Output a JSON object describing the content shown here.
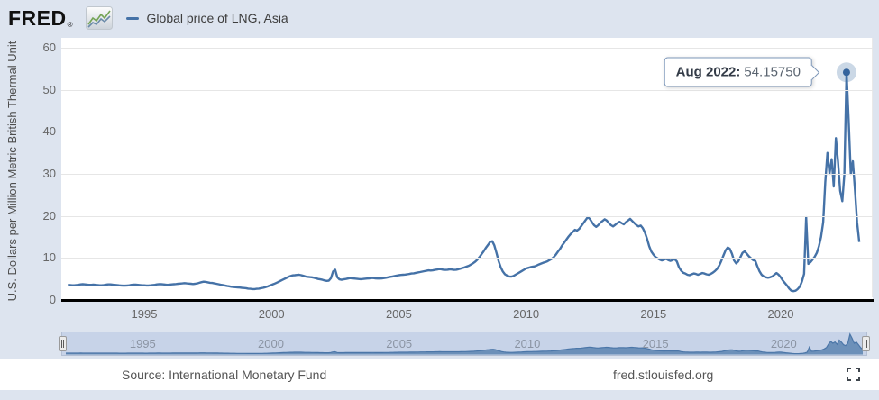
{
  "header": {
    "logo_text": "FRED",
    "registered_mark": "®",
    "legend_label": "Global price of LNG, Asia"
  },
  "icons": {
    "brand_icon": "fred-sparkline-icon",
    "footer_icon": "fullscreen-icon"
  },
  "tooltip": {
    "label": "Aug 2022:",
    "value": "54.15750"
  },
  "footer": {
    "source": "Source: International Monetary Fund",
    "site": "fred.stlouisfed.org"
  },
  "colors": {
    "line": "#4572a7",
    "marker": "#35649c",
    "marker_halo": "rgba(69,114,167,0.28)",
    "page_background": "#dde4ef",
    "plot_background": "#ffffff",
    "gridline": "#e6e6e6",
    "axis_line": "#000000",
    "tick_label": "#666666",
    "navigator_fill": "#6288b4",
    "navigator_line": "#4b76a8",
    "navigator_mask": "#c7d3e8",
    "tooltip_border": "#7e98ba"
  },
  "chart_data": {
    "type": "line",
    "title": "Global price of LNG, Asia",
    "ylabel": "U.S. Dollars per Million Metric British Thermal Unit",
    "frequency": "monthly",
    "x_start": "1992-01",
    "x_end": "2023-02",
    "ylim": [
      0,
      60
    ],
    "yticks": [
      0,
      10,
      20,
      30,
      40,
      50,
      60
    ],
    "xticks": [
      1995,
      2000,
      2005,
      2010,
      2015,
      2020
    ],
    "grid": "horizontal-only",
    "legend_position": "top-left",
    "highlight": {
      "label": "Aug 2022",
      "value": 54.1575,
      "index": 367
    },
    "values": [
      3.6,
      3.55,
      3.5,
      3.5,
      3.55,
      3.6,
      3.7,
      3.75,
      3.7,
      3.65,
      3.6,
      3.6,
      3.65,
      3.6,
      3.55,
      3.5,
      3.5,
      3.55,
      3.65,
      3.7,
      3.7,
      3.65,
      3.6,
      3.55,
      3.5,
      3.45,
      3.4,
      3.4,
      3.45,
      3.5,
      3.6,
      3.65,
      3.65,
      3.6,
      3.55,
      3.5,
      3.5,
      3.45,
      3.45,
      3.5,
      3.55,
      3.6,
      3.7,
      3.75,
      3.75,
      3.7,
      3.65,
      3.6,
      3.65,
      3.7,
      3.75,
      3.8,
      3.85,
      3.9,
      3.95,
      4.0,
      3.95,
      3.9,
      3.85,
      3.8,
      3.85,
      3.95,
      4.1,
      4.25,
      4.35,
      4.3,
      4.2,
      4.1,
      4.05,
      3.95,
      3.85,
      3.75,
      3.65,
      3.55,
      3.45,
      3.35,
      3.25,
      3.15,
      3.1,
      3.05,
      3.0,
      2.95,
      2.9,
      2.85,
      2.8,
      2.7,
      2.65,
      2.6,
      2.6,
      2.65,
      2.7,
      2.8,
      2.9,
      3.05,
      3.2,
      3.4,
      3.6,
      3.8,
      4.0,
      4.25,
      4.5,
      4.75,
      5.0,
      5.25,
      5.5,
      5.7,
      5.85,
      5.9,
      5.95,
      6.0,
      5.9,
      5.75,
      5.6,
      5.5,
      5.45,
      5.4,
      5.3,
      5.15,
      5.0,
      4.9,
      4.8,
      4.65,
      4.55,
      4.6,
      5.2,
      6.8,
      7.2,
      5.4,
      4.9,
      4.8,
      4.9,
      5.0,
      5.1,
      5.2,
      5.15,
      5.1,
      5.05,
      5.0,
      4.95,
      5.0,
      5.05,
      5.1,
      5.15,
      5.2,
      5.2,
      5.15,
      5.1,
      5.1,
      5.15,
      5.2,
      5.3,
      5.4,
      5.5,
      5.6,
      5.7,
      5.8,
      5.9,
      5.95,
      6.0,
      6.05,
      6.1,
      6.2,
      6.3,
      6.35,
      6.45,
      6.55,
      6.65,
      6.75,
      6.85,
      6.95,
      7.05,
      7.0,
      7.05,
      7.15,
      7.25,
      7.35,
      7.3,
      7.2,
      7.15,
      7.2,
      7.3,
      7.25,
      7.15,
      7.2,
      7.3,
      7.45,
      7.6,
      7.75,
      7.95,
      8.15,
      8.45,
      8.75,
      9.1,
      9.6,
      10.2,
      10.9,
      11.6,
      12.4,
      13.1,
      13.8,
      14.0,
      13.0,
      11.2,
      9.3,
      7.8,
      6.8,
      6.1,
      5.8,
      5.6,
      5.55,
      5.7,
      6.0,
      6.3,
      6.6,
      6.9,
      7.2,
      7.5,
      7.65,
      7.8,
      7.9,
      8.0,
      8.2,
      8.45,
      8.65,
      8.85,
      9.0,
      9.2,
      9.5,
      9.8,
      10.2,
      10.8,
      11.5,
      12.2,
      13.0,
      13.7,
      14.4,
      15.1,
      15.7,
      16.2,
      16.7,
      16.5,
      16.9,
      17.6,
      18.3,
      19.0,
      19.7,
      19.3,
      18.5,
      17.8,
      17.4,
      17.8,
      18.4,
      18.8,
      19.2,
      18.9,
      18.3,
      17.8,
      17.5,
      17.9,
      18.3,
      18.6,
      18.3,
      18.0,
      18.5,
      18.9,
      19.3,
      18.8,
      18.3,
      17.8,
      17.5,
      17.7,
      17.1,
      16.0,
      14.5,
      12.8,
      11.5,
      10.8,
      10.2,
      9.9,
      9.6,
      9.4,
      9.6,
      9.8,
      9.5,
      9.3,
      9.5,
      9.7,
      9.2,
      7.8,
      7.0,
      6.5,
      6.3,
      6.0,
      5.9,
      6.1,
      6.3,
      6.2,
      6.0,
      6.2,
      6.4,
      6.3,
      6.1,
      6.0,
      6.2,
      6.5,
      6.9,
      7.4,
      8.2,
      9.3,
      10.6,
      11.8,
      12.5,
      12.2,
      11.0,
      9.4,
      8.7,
      9.2,
      10.2,
      11.2,
      11.6,
      11.0,
      10.4,
      9.9,
      9.5,
      9.3,
      8.0,
      6.8,
      6.0,
      5.6,
      5.4,
      5.3,
      5.4,
      5.6,
      6.0,
      6.4,
      6.0,
      5.4,
      4.6,
      4.0,
      3.4,
      2.7,
      2.2,
      2.1,
      2.2,
      2.6,
      3.2,
      4.4,
      6.2,
      19.7,
      8.6,
      9.0,
      9.6,
      10.3,
      11.2,
      12.8,
      15.0,
      18.5,
      28.0,
      35.0,
      30.0,
      33.5,
      27.0,
      38.5,
      33.0,
      26.0,
      23.5,
      30.0,
      54.1575,
      43.0,
      30.0,
      33.0,
      26.0,
      18.5,
      13.8
    ]
  },
  "navigator": {
    "year_labels": [
      1995,
      2000,
      2005,
      2010,
      2015,
      2020
    ],
    "range": "full"
  }
}
